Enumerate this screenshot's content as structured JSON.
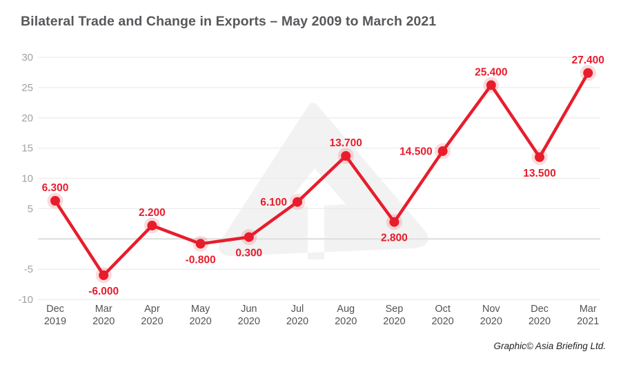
{
  "title": "Bilateral Trade and Change in Exports – May 2009 to March 2021",
  "credit": "Graphic© Asia Briefing Ltd.",
  "watermark_icon": "asia-briefing-arrow-logo",
  "colors": {
    "line": "#e71d2c",
    "point_fill": "#e71d2c",
    "point_halo_opacity": 0.16,
    "point_label": "#e71d2c",
    "grid": "#ececec",
    "zero_grid": "#e2e2e2",
    "title_text": "#57585b",
    "y_tick_text": "#a0a1a3",
    "x_tick_text": "#515254",
    "credit_text": "#231f20",
    "watermark_fill": "#f2f2f2",
    "background": "#ffffff"
  },
  "chart_data": {
    "type": "line",
    "title": "Bilateral Trade and Change in Exports – May 2009 to March 2021",
    "categories": [
      "Dec 2019",
      "Mar 2020",
      "Apr 2020",
      "May 2020",
      "Jun 2020",
      "Jul 2020",
      "Aug 2020",
      "Sep 2020",
      "Oct 2020",
      "Nov 2020",
      "Dec 2020",
      "Mar 2021"
    ],
    "values": [
      6.3,
      -6.0,
      2.2,
      -0.8,
      0.3,
      6.1,
      13.7,
      2.8,
      14.5,
      25.4,
      13.5,
      27.4
    ],
    "point_labels": [
      "6.300",
      "-6.000",
      "2.200",
      "-0.800",
      "0.300",
      "6.100",
      "13.700",
      "2.800",
      "14.500",
      "25.400",
      "13.500",
      "27.400"
    ],
    "label_positions": [
      "above",
      "below",
      "above",
      "below",
      "below",
      "left",
      "above",
      "below",
      "left",
      "above",
      "below",
      "above"
    ],
    "xlabel": "",
    "ylabel": "",
    "ylim": [
      -10,
      30
    ],
    "y_ticks": [
      30,
      25,
      20,
      15,
      10,
      5,
      -5,
      -10
    ],
    "grid_values": [
      30,
      25,
      20,
      15,
      10,
      5,
      0,
      -5,
      -10
    ],
    "grid": true,
    "legend_position": "none"
  }
}
